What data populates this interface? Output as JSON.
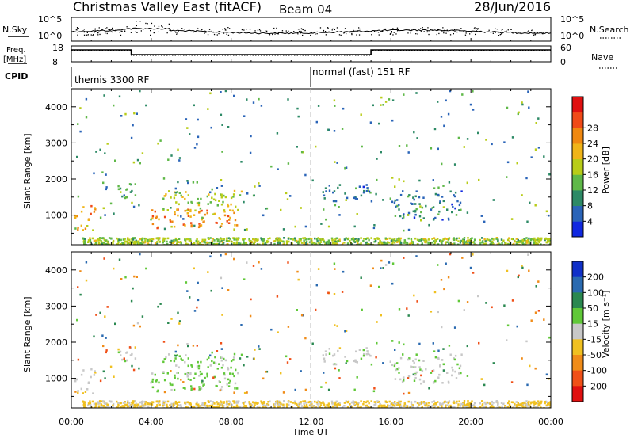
{
  "header": {
    "title": "Christmas Valley East (fitACF)",
    "beam": "Beam 04",
    "date": "28/Jun/2016"
  },
  "top_panels": {
    "nsky": {
      "label": "N.Sky",
      "tick_top": "10^5",
      "tick_bottom": "10^0",
      "right_tick_top": "10^5",
      "right_tick_bottom": "10^0",
      "right_label": "N.Search"
    },
    "freq": {
      "label_line1": "Freq.",
      "label_line2": "[MHz]",
      "tick_top": "18",
      "tick_bottom": "8",
      "right_tick_top": "60",
      "right_tick_bottom": "0",
      "right_label": "Nave",
      "steps": [
        {
          "from": 0.0,
          "to": 3.0,
          "freq": 15.5,
          "nave": 42
        },
        {
          "from": 3.0,
          "to": 15.0,
          "freq": 12.5,
          "nave": 24
        },
        {
          "from": 15.0,
          "to": 24.0,
          "freq": 15.5,
          "nave": 42
        }
      ]
    },
    "cpid": {
      "label": "CPID",
      "modes": [
        {
          "text": "themis 3300 RF",
          "start": 0
        },
        {
          "text": "normal (fast) 151 RF",
          "start": 12
        }
      ]
    }
  },
  "time_axis": {
    "ticks": [
      "00:00",
      "04:00",
      "08:00",
      "12:00",
      "16:00",
      "20:00",
      "00:00"
    ],
    "label": "Time UT"
  },
  "power_panel": {
    "ylabel": "Slant Range [km]",
    "yticks": [
      "1000",
      "2000",
      "3000",
      "4000"
    ],
    "colorbar_label": "Power [dB]",
    "colorbar_ticks": [
      "4",
      "8",
      "12",
      "16",
      "20",
      "24",
      "28"
    ],
    "colors": [
      "#1028e0",
      "#2a64b8",
      "#2d8a66",
      "#5fb848",
      "#b8cc18",
      "#f0b418",
      "#f08810",
      "#f04a18",
      "#e01010"
    ]
  },
  "velocity_panel": {
    "ylabel": "Slant Range [km]",
    "yticks": [
      "1000",
      "2000",
      "3000",
      "4000"
    ],
    "colorbar_label": "Velocity [m s⁻¹]",
    "colorbar_ticks": [
      "200",
      "100",
      "50",
      "15",
      "-15",
      "-50",
      "-100",
      "-200"
    ],
    "colors": [
      "#1030c8",
      "#2a6ab0",
      "#2a8850",
      "#60c838",
      "#c8c8c8",
      "#f0c020",
      "#f08c18",
      "#f05018",
      "#e01010"
    ]
  },
  "chart_data": {
    "type": "heatmap",
    "x_range_hours": [
      0,
      24
    ],
    "y_range_km": [
      180,
      4500
    ],
    "echo_regions": [
      {
        "t": [
          0.1,
          1.2
        ],
        "r": [
          600,
          1300
        ],
        "power": 24,
        "velocity": -5
      },
      {
        "t": [
          1.8,
          3.2
        ],
        "r": [
          1500,
          1900
        ],
        "power": 14,
        "velocity": 0
      },
      {
        "t": [
          2.8,
          3.0
        ],
        "r": [
          3000,
          3250
        ],
        "power": 6,
        "velocity": 60
      },
      {
        "t": [
          4.0,
          8.5
        ],
        "r": [
          650,
          1200
        ],
        "power": 26,
        "velocity": 30
      },
      {
        "t": [
          4.5,
          8.5
        ],
        "r": [
          1100,
          1700
        ],
        "power": 18,
        "velocity": 20
      },
      {
        "t": [
          0.5,
          24.0
        ],
        "r": [
          180,
          400
        ],
        "power": 16,
        "velocity": -20
      },
      {
        "t": [
          12.5,
          15.0
        ],
        "r": [
          1400,
          1900
        ],
        "power": 8,
        "velocity": 5
      },
      {
        "t": [
          16.0,
          19.5
        ],
        "r": [
          900,
          1700
        ],
        "power": 8,
        "velocity": 5
      }
    ]
  }
}
